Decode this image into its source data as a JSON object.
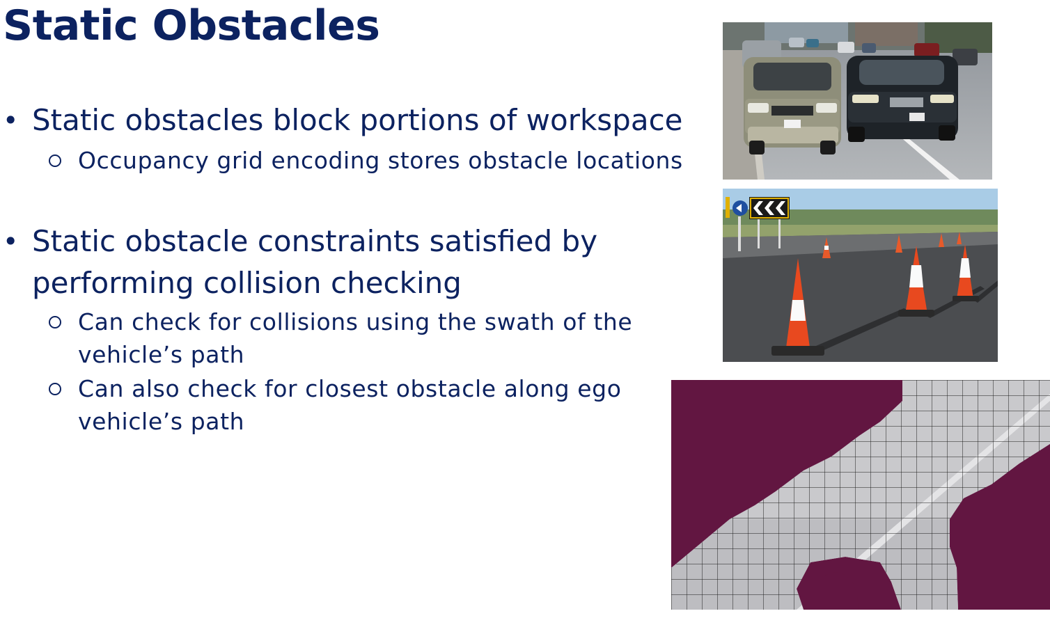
{
  "slide": {
    "title": "Static Obstacles",
    "bullets": [
      {
        "text": "Static obstacles block portions of workspace",
        "sub": [
          {
            "text": "Occupancy grid encoding stores obstacle locations"
          }
        ]
      },
      {
        "lines": [
          "Static obstacle constraints satisfied by",
          "performing collision checking"
        ],
        "sub": [
          {
            "lines": [
              "Can check for collisions using the swath of the",
              "vehicle’s path"
            ]
          },
          {
            "lines": [
              "Can also check for closest obstacle along ego",
              "vehicle’s path"
            ]
          }
        ]
      }
    ]
  },
  "colors": {
    "title": "#0c2260",
    "occupied": "#621641",
    "free": "#c9c9cc",
    "grid_line": "#1a1a1a"
  },
  "images": {
    "parked_cars": "photo of parked cars on a street",
    "traffic_cones": "photo of traffic cones on a road",
    "occupancy_grid": "occupancy grid map"
  }
}
